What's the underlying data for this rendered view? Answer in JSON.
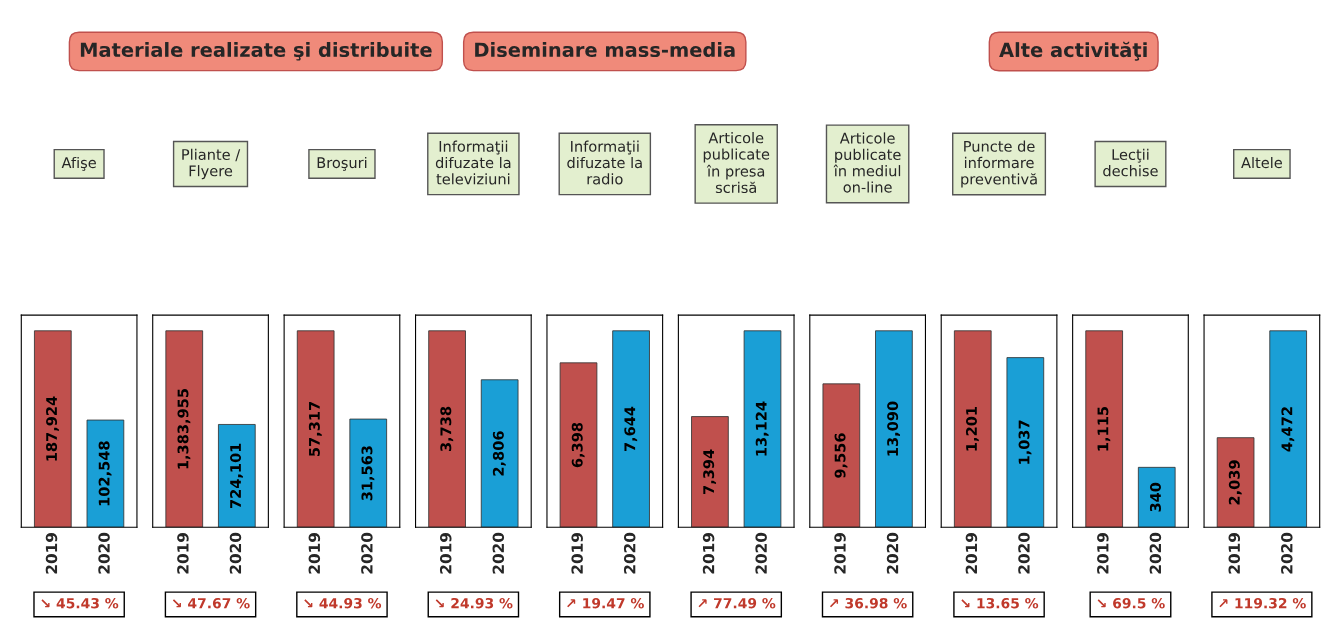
{
  "chart_data": [
    {
      "type": "bar",
      "title": "Afişe",
      "categories": [
        "2019",
        "2020"
      ],
      "values": [
        187924,
        102548
      ],
      "value_labels": [
        "187,924",
        "102,548"
      ],
      "colors": [
        "#c0504d",
        "#1a9fd6"
      ],
      "annotations": [
        "↘ 45.43 %",
        "Materiale realizate şi distribuite"
      ]
    },
    {
      "type": "bar",
      "title": "Pliante /\nFlyere",
      "categories": [
        "2019",
        "2020"
      ],
      "values": [
        1383955,
        724101
      ],
      "value_labels": [
        "1,383,955",
        "724,101"
      ],
      "colors": [
        "#c0504d",
        "#1a9fd6"
      ],
      "annotations": [
        "↘ 47.67 %"
      ]
    },
    {
      "type": "bar",
      "title": "Broşuri",
      "categories": [
        "2019",
        "2020"
      ],
      "values": [
        57317,
        31563
      ],
      "value_labels": [
        "57,317",
        "31,563"
      ],
      "colors": [
        "#c0504d",
        "#1a9fd6"
      ],
      "annotations": [
        "↘ 44.93 %"
      ]
    },
    {
      "type": "bar",
      "title": "Informaţii\ndifuzate la\nteleviziuni",
      "categories": [
        "2019",
        "2020"
      ],
      "values": [
        3738,
        2806
      ],
      "value_labels": [
        "3,738",
        "2,806"
      ],
      "colors": [
        "#c0504d",
        "#1a9fd6"
      ],
      "annotations": [
        "↘ 24.93 %",
        "Diseminare mass-media"
      ]
    },
    {
      "type": "bar",
      "title": "Informaţii\ndifuzate la\nradio",
      "categories": [
        "2019",
        "2020"
      ],
      "values": [
        6398,
        7644
      ],
      "value_labels": [
        "6,398",
        "7,644"
      ],
      "colors": [
        "#c0504d",
        "#1a9fd6"
      ],
      "annotations": [
        "↗ 19.47 %"
      ]
    },
    {
      "type": "bar",
      "title": "Articole\npublicate\nîn presa\nscrisă",
      "categories": [
        "2019",
        "2020"
      ],
      "values": [
        7394,
        13124
      ],
      "value_labels": [
        "7,394",
        "13,124"
      ],
      "colors": [
        "#c0504d",
        "#1a9fd6"
      ],
      "annotations": [
        "↗ 77.49 %"
      ]
    },
    {
      "type": "bar",
      "title": "Articole\npublicate\nîn mediul\non-line",
      "categories": [
        "2019",
        "2020"
      ],
      "values": [
        9556,
        13090
      ],
      "value_labels": [
        "9,556",
        "13,090"
      ],
      "colors": [
        "#c0504d",
        "#1a9fd6"
      ],
      "annotations": [
        "↗ 36.98 %"
      ]
    },
    {
      "type": "bar",
      "title": "Puncte de\ninformare\npreventivă",
      "categories": [
        "2019",
        "2020"
      ],
      "values": [
        1201,
        1037
      ],
      "value_labels": [
        "1,201",
        "1,037"
      ],
      "colors": [
        "#c0504d",
        "#1a9fd6"
      ],
      "annotations": [
        "↘ 13.65 %",
        "Alte activităţi"
      ]
    },
    {
      "type": "bar",
      "title": "Lecţii\ndechise",
      "categories": [
        "2019",
        "2020"
      ],
      "values": [
        1115,
        340
      ],
      "value_labels": [
        "1,115",
        "340"
      ],
      "colors": [
        "#c0504d",
        "#1a9fd6"
      ],
      "annotations": [
        "↘ 69.5 %"
      ]
    },
    {
      "type": "bar",
      "title": "Altele",
      "categories": [
        "2019",
        "2020"
      ],
      "values": [
        2039,
        4472
      ],
      "value_labels": [
        "2,039",
        "4,472"
      ],
      "colors": [
        "#c0504d",
        "#1a9fd6"
      ],
      "annotations": [
        "↗ 119.32 %"
      ]
    }
  ]
}
